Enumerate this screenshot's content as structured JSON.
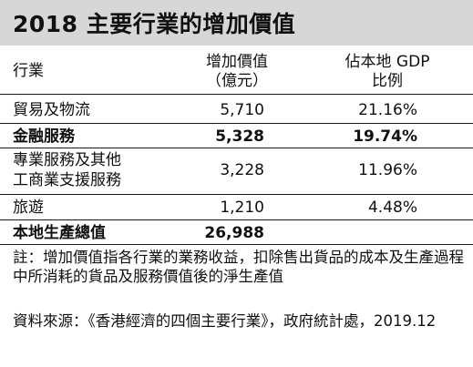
{
  "title": "2018 主要行業的增加價值",
  "columns": {
    "sector": "行業",
    "value_line1": "增加價值",
    "value_line2": "（億元）",
    "share_line1": "佔本地 GDP",
    "share_line2": "比例"
  },
  "rows": [
    {
      "name": "貿易及物流",
      "value": "5,710",
      "share": "21.16%",
      "bold": false
    },
    {
      "name": "金融服務",
      "value": "5,328",
      "share": "19.74%",
      "bold": true
    },
    {
      "name_line1": "專業服務及其他",
      "name_line2": "工商業支援服務",
      "value": "3,228",
      "share": "11.96%",
      "bold": false
    },
    {
      "name": "旅遊",
      "value": "1,210",
      "share": "4.48%",
      "bold": false
    }
  ],
  "total": {
    "name": "本地生產總值",
    "value": "26,988"
  },
  "footnote": "註：增加價值指各行業的業務收益，扣除售出貨品的成本及生產過程中所消耗的貨品及服務價值後的淨生產值",
  "source": "資料來源：《香港經濟的四個主要行業》，政府統計處，2019.12"
}
